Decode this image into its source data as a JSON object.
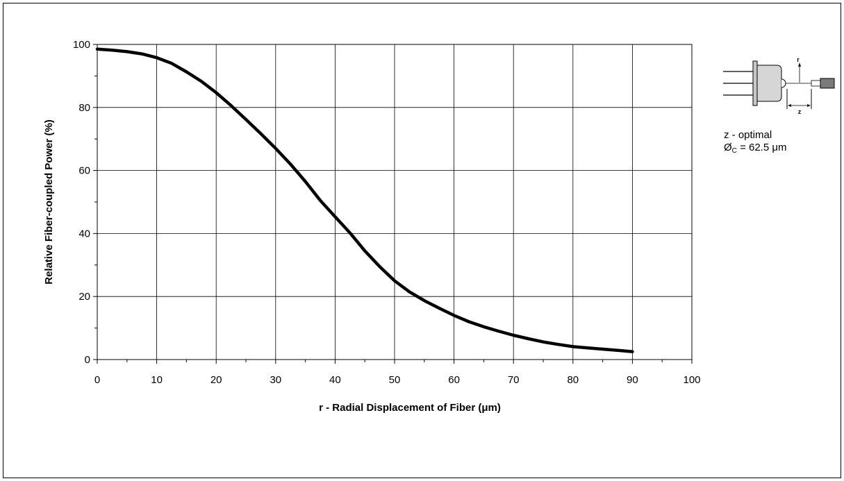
{
  "chart_data": {
    "type": "line",
    "xlabel": "r - Radial Displacement of Fiber (μm)",
    "ylabel": "Relative Fiber-coupled Power (%)",
    "xlim": [
      0,
      100
    ],
    "ylim": [
      0,
      100
    ],
    "xticks": [
      0,
      10,
      20,
      30,
      40,
      50,
      60,
      70,
      80,
      90,
      100
    ],
    "yticks": [
      0,
      20,
      40,
      60,
      80,
      100
    ],
    "grid": true,
    "series_color": "#000000",
    "series": [
      {
        "x": [
          0,
          2.5,
          5,
          7.5,
          10,
          12.5,
          15,
          17.5,
          20,
          22.5,
          25,
          27.5,
          30,
          32.5,
          35,
          37.5,
          40,
          42.5,
          45,
          47.5,
          50,
          52.5,
          55,
          57.5,
          60,
          62.5,
          65,
          67.5,
          70,
          72.5,
          75,
          77.5,
          80,
          82.5,
          85,
          87.5,
          90
        ],
        "y": [
          98.5,
          98.2,
          97.7,
          97.0,
          95.8,
          94.0,
          91.3,
          88.3,
          84.7,
          80.6,
          76.2,
          71.7,
          67.0,
          62.0,
          56.5,
          50.5,
          45.3,
          40.2,
          34.5,
          29.5,
          25.0,
          21.5,
          18.7,
          16.3,
          14.0,
          12.0,
          10.4,
          9.0,
          7.7,
          6.6,
          5.6,
          4.8,
          4.1,
          3.7,
          3.3,
          2.9,
          2.5
        ]
      }
    ]
  },
  "inset": {
    "label_r": "r",
    "label_z": "z",
    "note_line1": "z - optimal",
    "note_symbol": "Ø",
    "note_sub": "C",
    "note_rest": " = 62.5 μm"
  }
}
